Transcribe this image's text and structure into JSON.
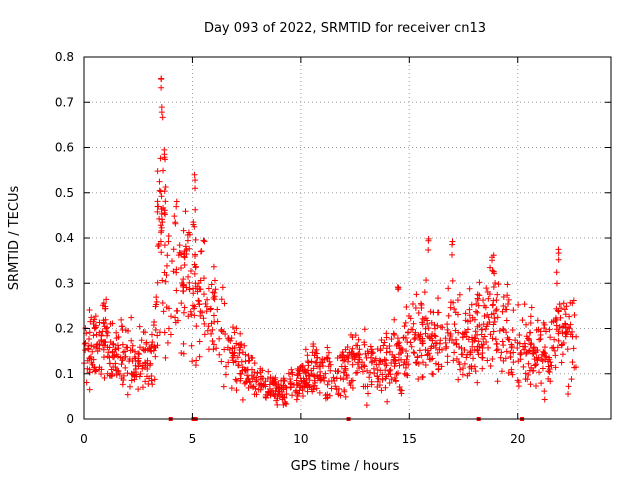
{
  "chart_data": {
    "type": "scatter",
    "title": "Day 093 of 2022, SRMTID for receiver cn13",
    "xlabel": "GPS time / hours",
    "ylabel": "SRMTID / TECUs",
    "xlim": [
      0,
      24.3
    ],
    "ylim": [
      0,
      0.8
    ],
    "xticks": [
      0,
      5,
      10,
      15,
      20
    ],
    "xtick_labels": [
      "0",
      "5",
      "10",
      "15",
      "20"
    ],
    "yticks": [
      0,
      0.1,
      0.2,
      0.3,
      0.4,
      0.5,
      0.6,
      0.7,
      0.8
    ],
    "ytick_labels": [
      "0",
      "0.1",
      "0.2",
      "0.3",
      "0.4",
      "0.5",
      "0.6",
      "0.7",
      "0.8"
    ],
    "grid": true,
    "marker": "+",
    "color": "#ff0000",
    "data_gap_markers_x": [
      4.0,
      5.05,
      5.15,
      12.2,
      18.2,
      20.2
    ],
    "trend": [
      [
        0.0,
        0.15
      ],
      [
        0.5,
        0.16
      ],
      [
        1.0,
        0.17
      ],
      [
        1.5,
        0.14
      ],
      [
        2.0,
        0.14
      ],
      [
        2.5,
        0.12
      ],
      [
        3.0,
        0.13
      ],
      [
        3.3,
        0.2
      ],
      [
        3.5,
        0.42
      ],
      [
        3.8,
        0.35
      ],
      [
        4.2,
        0.3
      ],
      [
        4.6,
        0.28
      ],
      [
        5.0,
        0.3
      ],
      [
        5.5,
        0.25
      ],
      [
        6.0,
        0.22
      ],
      [
        6.5,
        0.18
      ],
      [
        7.0,
        0.14
      ],
      [
        7.5,
        0.1
      ],
      [
        8.0,
        0.08
      ],
      [
        8.5,
        0.07
      ],
      [
        9.0,
        0.06
      ],
      [
        9.5,
        0.07
      ],
      [
        10.0,
        0.09
      ],
      [
        10.5,
        0.11
      ],
      [
        11.0,
        0.1
      ],
      [
        11.5,
        0.1
      ],
      [
        12.0,
        0.11
      ],
      [
        12.5,
        0.12
      ],
      [
        13.0,
        0.13
      ],
      [
        13.5,
        0.12
      ],
      [
        14.0,
        0.12
      ],
      [
        14.5,
        0.14
      ],
      [
        15.0,
        0.17
      ],
      [
        15.5,
        0.17
      ],
      [
        16.0,
        0.19
      ],
      [
        16.5,
        0.18
      ],
      [
        17.0,
        0.19
      ],
      [
        17.5,
        0.18
      ],
      [
        18.0,
        0.19
      ],
      [
        18.5,
        0.21
      ],
      [
        19.0,
        0.22
      ],
      [
        19.5,
        0.18
      ],
      [
        20.0,
        0.16
      ],
      [
        20.5,
        0.14
      ],
      [
        21.0,
        0.15
      ],
      [
        21.5,
        0.16
      ],
      [
        22.0,
        0.22
      ],
      [
        22.5,
        0.18
      ],
      [
        22.7,
        0.14
      ]
    ],
    "peaks": [
      [
        3.55,
        0.76
      ],
      [
        3.6,
        0.7
      ],
      [
        3.7,
        0.61
      ],
      [
        3.5,
        0.53
      ],
      [
        3.75,
        0.52
      ],
      [
        3.4,
        0.5
      ],
      [
        3.6,
        0.44
      ],
      [
        5.1,
        0.55
      ],
      [
        5.05,
        0.45
      ],
      [
        4.2,
        0.45
      ],
      [
        4.4,
        0.4
      ],
      [
        4.8,
        0.42
      ],
      [
        15.9,
        0.41
      ],
      [
        17.0,
        0.4
      ],
      [
        18.8,
        0.36
      ],
      [
        21.9,
        0.38
      ],
      [
        1.0,
        0.27
      ],
      [
        14.5,
        0.3
      ]
    ]
  }
}
